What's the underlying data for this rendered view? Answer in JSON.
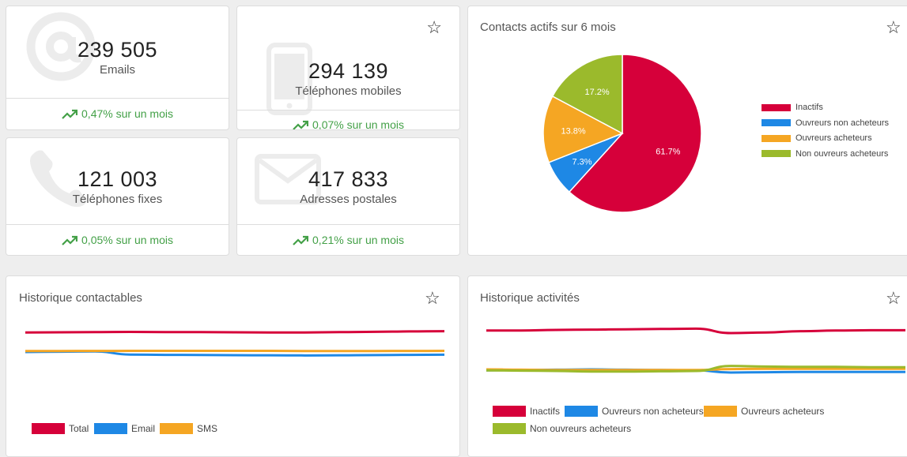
{
  "stats": [
    {
      "value": "239 505",
      "label": "Emails",
      "trend": "0,47% sur un mois",
      "icon": "at-icon"
    },
    {
      "value": "294 139",
      "label": "Téléphones mobiles",
      "trend": "0,07% sur un mois",
      "icon": "mobile-phone-icon"
    },
    {
      "value": "121 003",
      "label": "Téléphones fixes",
      "trend": "0,05% sur un mois",
      "icon": "phone-icon"
    },
    {
      "value": "417 833",
      "label": "Adresses postales",
      "trend": "0,21% sur un mois",
      "icon": "envelope-icon"
    }
  ],
  "star_glyph": "☆",
  "colors": {
    "red": "#d6003a",
    "blue": "#1e88e5",
    "orange": "#f5a623",
    "green": "#9bba2c",
    "trend": "#43a047"
  },
  "pie_card": {
    "title": "Contacts actifs sur 6 mois"
  },
  "contactables_card": {
    "title": "Historique contactables"
  },
  "activites_card": {
    "title": "Historique activités"
  },
  "chart_data": [
    {
      "type": "pie",
      "title": "Contacts actifs sur 6 mois",
      "legend_position": "right",
      "slices": [
        {
          "label": "Inactifs",
          "value": 61.7,
          "display": "61.7%",
          "color": "#d6003a"
        },
        {
          "label": "Ouvreurs non acheteurs",
          "value": 7.3,
          "display": "7.3%",
          "color": "#1e88e5"
        },
        {
          "label": "Ouvreurs acheteurs",
          "value": 13.8,
          "display": "13.8%",
          "color": "#f5a623"
        },
        {
          "label": "Non ouvreurs acheteurs",
          "value": 17.2,
          "display": "17.2%",
          "color": "#9bba2c"
        }
      ]
    },
    {
      "type": "line",
      "title": "Historique contactables",
      "legend_position": "bottom",
      "ylim": [
        0,
        100
      ],
      "x": [
        0,
        1,
        2,
        3,
        4,
        5,
        6,
        7,
        8,
        9,
        10,
        11,
        12
      ],
      "series": [
        {
          "name": "Total",
          "color": "#d6003a",
          "values": [
            86,
            86.3,
            86.5,
            86.8,
            86.6,
            86.5,
            86.2,
            86,
            86,
            86.5,
            87,
            87.6,
            88
          ]
        },
        {
          "name": "Email",
          "color": "#1e88e5",
          "values": [
            55,
            55.5,
            56,
            51,
            50.5,
            50.3,
            50,
            49.8,
            49.6,
            49.8,
            50.2,
            50.5,
            50.8
          ]
        },
        {
          "name": "SMS",
          "color": "#f5a623",
          "values": [
            56.5,
            56.6,
            56.7,
            56.8,
            56.9,
            56.9,
            56.9,
            56.8,
            56.6,
            56.5,
            56.6,
            56.7,
            56.8
          ]
        }
      ]
    },
    {
      "type": "line",
      "title": "Historique activités",
      "legend_position": "bottom",
      "ylim": [
        0,
        100
      ],
      "x": [
        0,
        1,
        2,
        3,
        4,
        5,
        6,
        7,
        8,
        9,
        10,
        11,
        12
      ],
      "series": [
        {
          "name": "Inactifs",
          "color": "#d6003a",
          "values": [
            89,
            89,
            90,
            90.5,
            91,
            91.5,
            92,
            85,
            86,
            88,
            89,
            89.5,
            89.5
          ]
        },
        {
          "name": "Ouvreurs non acheteurs",
          "color": "#1e88e5",
          "values": [
            26,
            26.5,
            27,
            27.5,
            27,
            26.5,
            26,
            22.5,
            23,
            23.5,
            23.5,
            23.5,
            23.5
          ]
        },
        {
          "name": "Ouvreurs acheteurs",
          "color": "#f5a623",
          "values": [
            27.5,
            27,
            26.5,
            26.5,
            26.5,
            26.5,
            26.5,
            28,
            28.5,
            28.5,
            28.5,
            28.5,
            28.5
          ]
        },
        {
          "name": "Non ouvreurs acheteurs",
          "color": "#9bba2c",
          "values": [
            26,
            25.5,
            25,
            24,
            24,
            24.5,
            25,
            33,
            32,
            31.5,
            31.5,
            31,
            31
          ]
        }
      ]
    }
  ]
}
